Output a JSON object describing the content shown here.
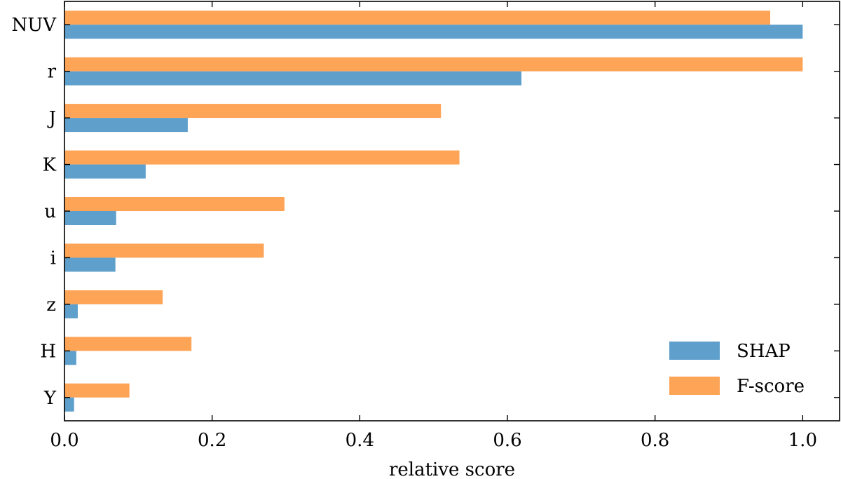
{
  "chart_data": {
    "type": "bar",
    "orientation": "horizontal",
    "title": "",
    "xlabel": "relative score",
    "ylabel": "",
    "xlim": [
      0.0,
      1.05
    ],
    "xticks": [
      0.0,
      0.2,
      0.4,
      0.6,
      0.8,
      1.0
    ],
    "xtick_labels": [
      "0.0",
      "0.2",
      "0.4",
      "0.6",
      "0.8",
      "1.0"
    ],
    "categories": [
      "NUV",
      "r",
      "J",
      "K",
      "u",
      "i",
      "z",
      "H",
      "Y"
    ],
    "series": [
      {
        "name": "SHAP",
        "color": "#5f9fcc",
        "values": [
          1.0,
          0.619,
          0.167,
          0.11,
          0.07,
          0.069,
          0.018,
          0.016,
          0.013
        ]
      },
      {
        "name": "F-score",
        "color": "#fea456",
        "values": [
          0.956,
          1.0,
          0.51,
          0.535,
          0.298,
          0.27,
          0.133,
          0.172,
          0.088
        ]
      }
    ],
    "grid": false,
    "legend_position": "bottom-right"
  }
}
